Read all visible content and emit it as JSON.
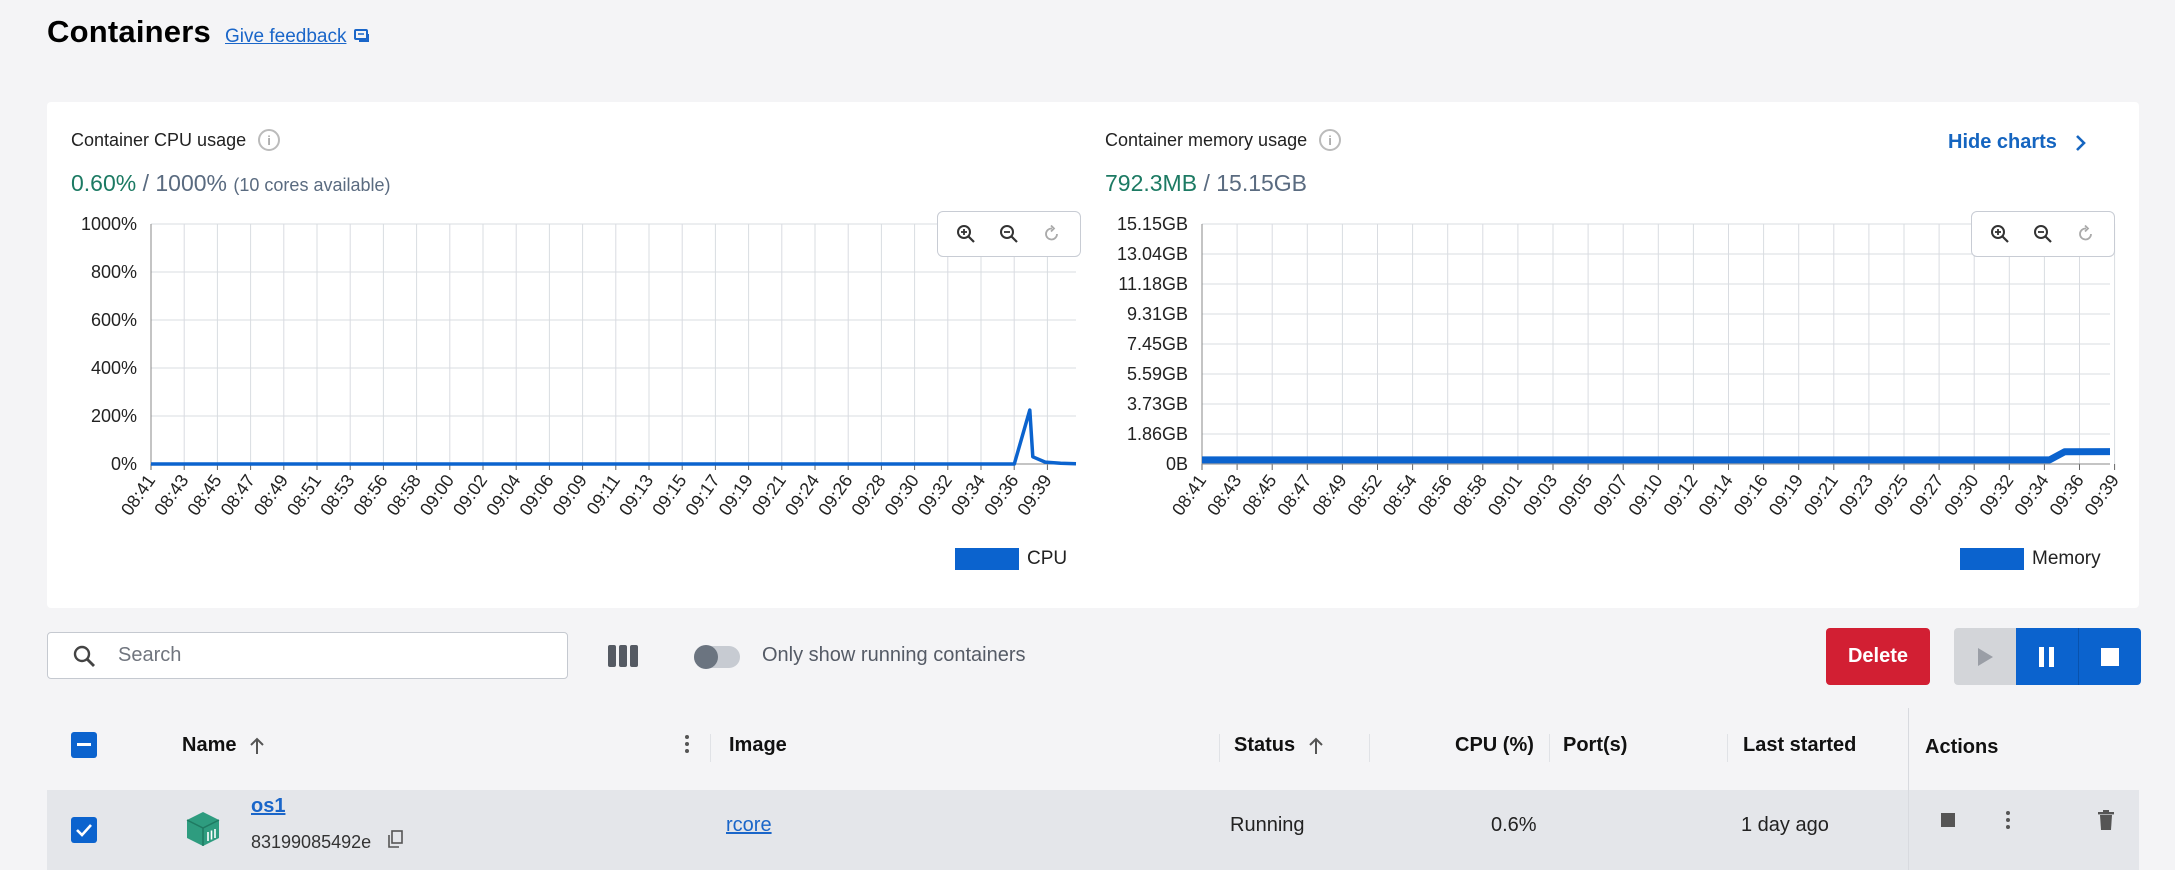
{
  "page": {
    "title": "Containers",
    "feedback_label": "Give feedback"
  },
  "cpu_chart": {
    "title": "Container CPU usage",
    "current": "0.60%",
    "separator": "/",
    "total": "1000%",
    "note": "(10 cores available)",
    "legend": "CPU"
  },
  "memory_chart": {
    "title": "Container memory usage",
    "current": "792.3MB",
    "separator": "/",
    "total": "15.15GB",
    "legend": "Memory"
  },
  "hide_charts_label": "Hide charts",
  "chart_data": [
    {
      "type": "line",
      "ylabel": "",
      "xlabel": "",
      "ylim": [
        0,
        1000
      ],
      "y_ticks": [
        "1000%",
        "800%",
        "600%",
        "400%",
        "200%",
        "0%"
      ],
      "x_ticks": [
        "08:41",
        "08:43",
        "08:45",
        "08:47",
        "08:49",
        "08:51",
        "08:53",
        "08:56",
        "08:58",
        "09:00",
        "09:02",
        "09:04",
        "09:06",
        "09:09",
        "09:11",
        "09:13",
        "09:15",
        "09:17",
        "09:19",
        "09:21",
        "09:24",
        "09:26",
        "09:28",
        "09:30",
        "09:32",
        "09:34",
        "09:36",
        "09:39"
      ],
      "series": [
        {
          "name": "CPU",
          "color": "#0b63ce",
          "x": [
            "08:41",
            "09:36",
            "09:37",
            "09:38",
            "09:38",
            "09:39",
            "09:40",
            "09:41"
          ],
          "values": [
            0,
            0,
            0,
            225,
            30,
            8,
            3,
            1
          ]
        }
      ],
      "legend": "bottom-right",
      "grid": true
    },
    {
      "type": "line",
      "ylabel": "",
      "xlabel": "",
      "ylim": [
        0,
        15.15
      ],
      "y_ticks": [
        "15.15GB",
        "13.04GB",
        "11.18GB",
        "9.31GB",
        "7.45GB",
        "5.59GB",
        "3.73GB",
        "1.86GB",
        "0B"
      ],
      "x_ticks": [
        "08:41",
        "08:43",
        "08:45",
        "08:47",
        "08:49",
        "08:52",
        "08:54",
        "08:56",
        "08:58",
        "09:01",
        "09:03",
        "09:05",
        "09:07",
        "09:10",
        "09:12",
        "09:14",
        "09:16",
        "09:19",
        "09:21",
        "09:23",
        "09:25",
        "09:27",
        "09:30",
        "09:32",
        "09:34",
        "09:36",
        "09:39"
      ],
      "series": [
        {
          "name": "Memory",
          "color": "#0b63ce",
          "x": [
            "08:41",
            "09:37",
            "09:38",
            "09:41"
          ],
          "values": [
            0.26,
            0.26,
            0.77,
            0.78
          ]
        }
      ],
      "legend": "bottom-right",
      "grid": true
    }
  ],
  "toolbar": {
    "search_placeholder": "Search",
    "toggle_label": "Only show running containers",
    "delete_label": "Delete"
  },
  "table": {
    "headers": {
      "name": "Name",
      "image": "Image",
      "status": "Status",
      "cpu": "CPU (%)",
      "ports": "Port(s)",
      "last_started": "Last started",
      "actions": "Actions"
    },
    "rows": [
      {
        "name": "os1",
        "id": "83199085492e",
        "image": "rcore",
        "status": "Running",
        "cpu": "0.6%",
        "ports": "",
        "last_started": "1 day ago",
        "selected": true
      }
    ]
  },
  "colors": {
    "accent": "#0b63ce",
    "delete": "#d21f33",
    "usage_green": "#1c7a63"
  }
}
